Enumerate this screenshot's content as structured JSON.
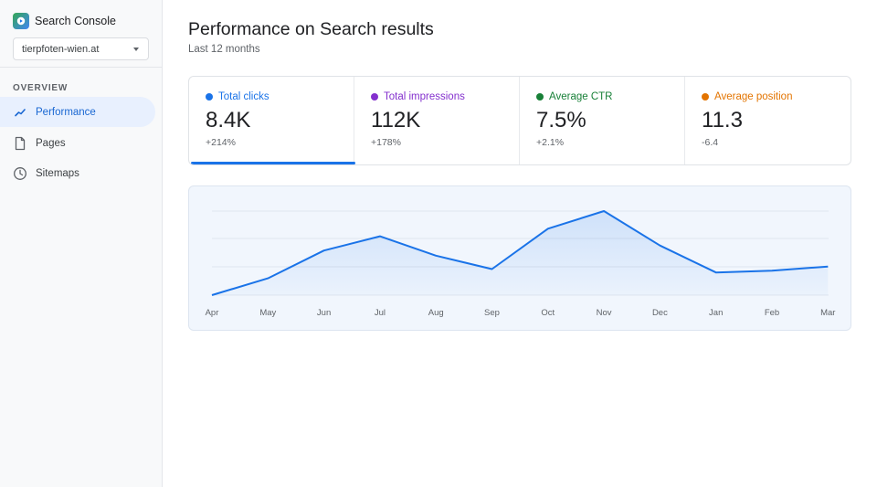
{
  "app": {
    "name": "Search Console",
    "logo_icon": "search-console-logo-icon"
  },
  "property_selector": {
    "value": "tierpfoten-wien.at"
  },
  "sidebar": {
    "section_label": "OVERVIEW",
    "items": [
      {
        "label": "Performance",
        "icon": "trend-icon",
        "active": true
      },
      {
        "label": "Pages",
        "icon": "page-icon",
        "active": false
      },
      {
        "label": "Sitemaps",
        "icon": "clock-icon",
        "active": false
      }
    ]
  },
  "header": {
    "title": "Performance on Search results",
    "subtitle": "Last 12 months"
  },
  "metrics": [
    {
      "label": "Total clicks",
      "value": "8.4K",
      "delta": "+214%",
      "color": "#1a73e8",
      "selected": true
    },
    {
      "label": "Total impressions",
      "value": "112K",
      "delta": "+178%",
      "color": "#8430ce",
      "selected": false
    },
    {
      "label": "Average CTR",
      "value": "7.5%",
      "delta": "+2.1%",
      "color": "#188038",
      "selected": false
    },
    {
      "label": "Average position",
      "value": "11.3",
      "delta": "-6.4",
      "color": "#e37400",
      "selected": false
    }
  ],
  "chart_data": {
    "type": "area",
    "categories": [
      "Apr",
      "May",
      "Jun",
      "Jul",
      "Aug",
      "Sep",
      "Oct",
      "Nov",
      "Dec",
      "Jan",
      "Feb",
      "Mar"
    ],
    "series": [
      {
        "values": [
          0.0,
          0.2,
          0.53,
          0.7,
          0.47,
          0.31,
          0.79,
          1.0,
          0.59,
          0.27,
          0.29,
          0.34
        ]
      }
    ],
    "ylim": [
      0,
      1
    ],
    "grid": true,
    "line_color": "#1a73e8"
  }
}
